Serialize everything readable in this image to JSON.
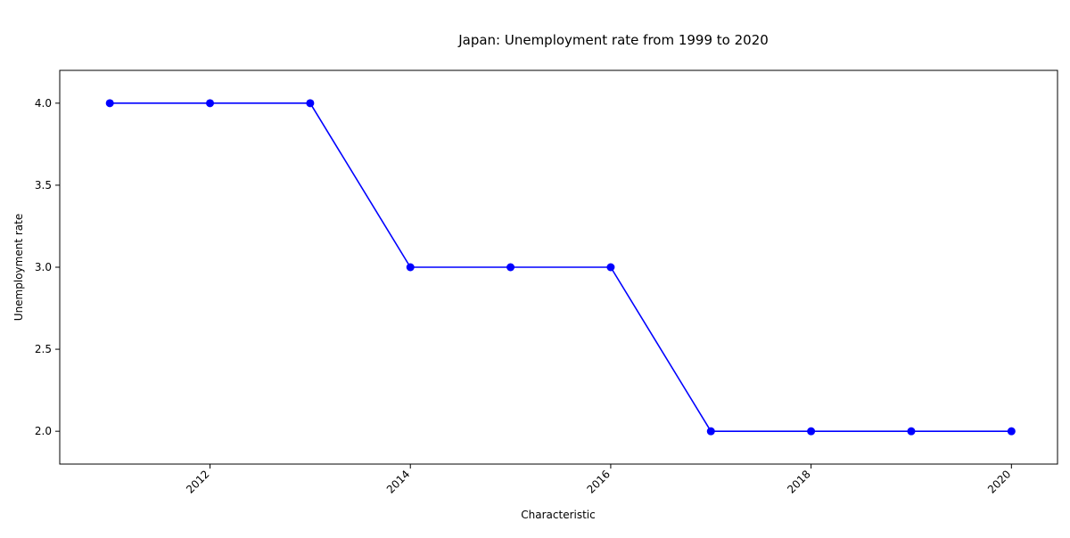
{
  "chart_data": {
    "type": "line",
    "title": "Japan: Unemployment rate from 1999 to 2020",
    "xlabel": "Characteristic",
    "ylabel": "Unemployment rate",
    "x": [
      2011,
      2012,
      2013,
      2014,
      2015,
      2016,
      2017,
      2018,
      2019,
      2020
    ],
    "series": [
      {
        "values": [
          4.0,
          4.0,
          4.0,
          3.0,
          3.0,
          3.0,
          2.0,
          2.0,
          2.0,
          2.0
        ]
      }
    ],
    "xlim": [
      2010.5,
      2020.46
    ],
    "ylim": [
      1.8,
      4.2
    ],
    "x_ticks": [
      "2012",
      "2014",
      "2016",
      "2018",
      "2020"
    ],
    "y_ticks": [
      "2.0",
      "2.5",
      "3.0",
      "3.5",
      "4.0"
    ],
    "grid": false,
    "legend": "none",
    "line_color": "#0000ff",
    "marker_color": "#0000ff"
  }
}
